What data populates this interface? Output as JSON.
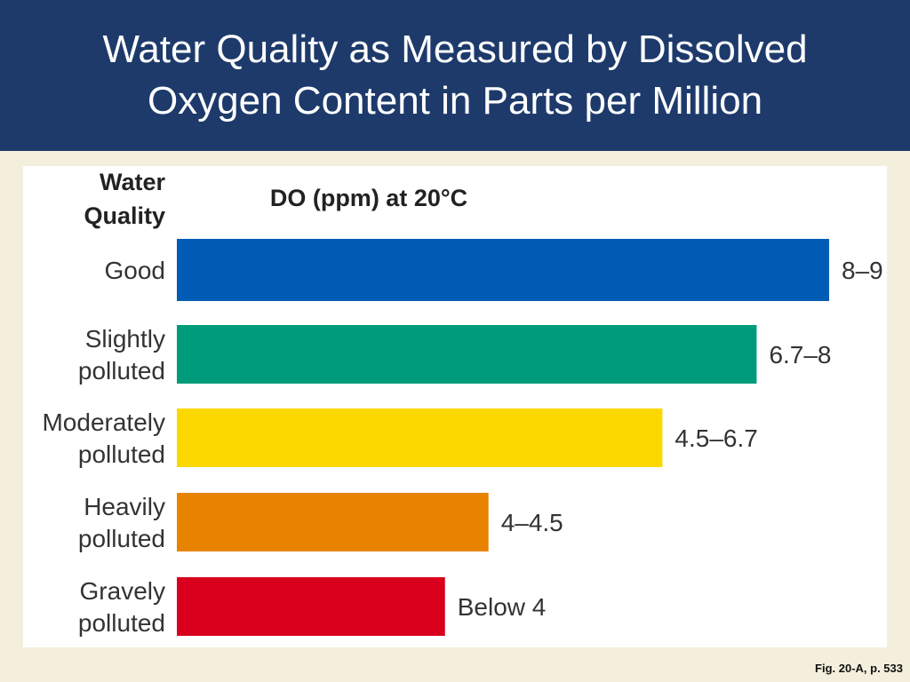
{
  "slide": {
    "title": "Water Quality as Measured by Dissolved\nOxygen Content in Parts per Million",
    "caption": "Fig. 20-A, p. 533"
  },
  "chart_data": {
    "type": "bar",
    "orientation": "horizontal",
    "category_header": [
      "Water",
      "Quality"
    ],
    "value_header": "DO (ppm) at 20°C",
    "xlim": [
      0,
      9
    ],
    "grid": false,
    "categories": [
      [
        "Good"
      ],
      [
        "Slightly",
        "polluted"
      ],
      [
        "Moderately",
        "polluted"
      ],
      [
        "Heavily",
        "polluted"
      ],
      [
        "Gravely",
        "polluted"
      ]
    ],
    "values": [
      9,
      8,
      6.7,
      4.3,
      3.7
    ],
    "value_labels": [
      "8–9",
      "6.7–8",
      "4.5–6.7",
      "4–4.5",
      "Below 4"
    ],
    "colors": [
      "#005cb4",
      "#009b7a",
      "#fcd800",
      "#e88300",
      "#d8001c"
    ]
  }
}
